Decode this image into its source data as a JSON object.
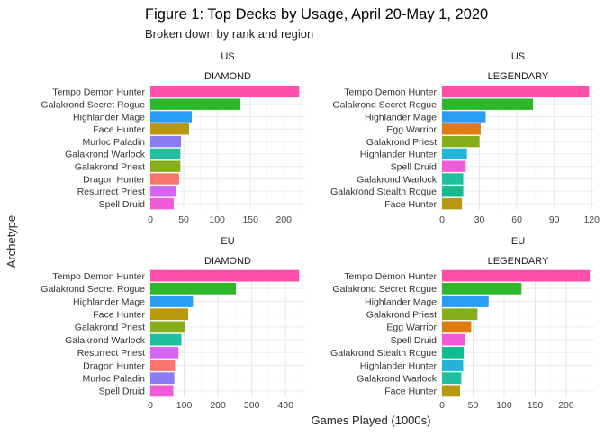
{
  "title": "Figure 1: Top Decks by Usage, April 20-May 1, 2020",
  "subtitle": "Broken down by rank and region",
  "xlabel": "Games Played (1000s)",
  "ylabel": "Archetype",
  "colors": {
    "Tempo Demon Hunter": "#FF4FAB",
    "Galakrond Secret Rogue": "#2EB62C",
    "Highlander Mage": "#2A9DF4",
    "Face Hunter": "#B8980F",
    "Murloc Paladin": "#8C7CF4",
    "Galakrond Warlock": "#1FBF9F",
    "Galakrond Priest": "#86AE1A",
    "Dragon Hunter": "#F8766D",
    "Resurrect Priest": "#D566F2",
    "Spell Druid": "#F25BD7",
    "Egg Warrior": "#DE7B12",
    "Highlander Hunter": "#22B5D8",
    "Galakrond Stealth Rogue": "#12BA8F"
  },
  "chart_data": [
    {
      "type": "bar",
      "orientation": "horizontal",
      "region": "US",
      "rank": "DIAMOND",
      "categories": [
        "Tempo Demon Hunter",
        "Galakrond Secret Rogue",
        "Highlander Mage",
        "Face Hunter",
        "Murloc Paladin",
        "Galakrond Warlock",
        "Galakrond Priest",
        "Dragon Hunter",
        "Resurrect Priest",
        "Spell Druid"
      ],
      "values": [
        223,
        135,
        62,
        58,
        46,
        45,
        45,
        43,
        38,
        35
      ],
      "xlim": [
        0,
        232
      ],
      "xticks": [
        0,
        50,
        100,
        150,
        200
      ],
      "xtick_labels": [
        "0",
        "50",
        "100",
        "150",
        "200"
      ]
    },
    {
      "type": "bar",
      "orientation": "horizontal",
      "region": "US",
      "rank": "LEGENDARY",
      "categories": [
        "Tempo Demon Hunter",
        "Galakrond Secret Rogue",
        "Highlander Mage",
        "Egg Warrior",
        "Galakrond Priest",
        "Highlander Hunter",
        "Spell Druid",
        "Galakrond Warlock",
        "Galakrond Stealth Rogue",
        "Face Hunter"
      ],
      "values": [
        118,
        73,
        35,
        31,
        30,
        20,
        19,
        17,
        17,
        16
      ],
      "xlim": [
        0,
        122
      ],
      "xticks": [
        0,
        30,
        60,
        90,
        120
      ],
      "xtick_labels": [
        "0",
        "30",
        "60",
        "90",
        "120"
      ]
    },
    {
      "type": "bar",
      "orientation": "horizontal",
      "region": "EU",
      "rank": "DIAMOND",
      "categories": [
        "Tempo Demon Hunter",
        "Galakrond Secret Rogue",
        "Highlander Mage",
        "Face Hunter",
        "Galakrond Priest",
        "Galakrond Warlock",
        "Resurrect Priest",
        "Dragon Hunter",
        "Murloc Paladin",
        "Spell Druid"
      ],
      "values": [
        440,
        253,
        126,
        112,
        103,
        92,
        83,
        73,
        71,
        68
      ],
      "xlim": [
        0,
        458
      ],
      "xticks": [
        0,
        100,
        200,
        300,
        400
      ],
      "xtick_labels": [
        "0",
        "100",
        "200",
        "300",
        "400"
      ]
    },
    {
      "type": "bar",
      "orientation": "horizontal",
      "region": "EU",
      "rank": "LEGENDARY",
      "categories": [
        "Tempo Demon Hunter",
        "Galakrond Secret Rogue",
        "Highlander Mage",
        "Galakrond Priest",
        "Egg Warrior",
        "Spell Druid",
        "Galakrond Stealth Rogue",
        "Highlander Hunter",
        "Galakrond Warlock",
        "Face Hunter"
      ],
      "values": [
        238,
        128,
        75,
        57,
        47,
        37,
        35,
        34,
        31,
        29
      ],
      "xlim": [
        0,
        245
      ],
      "xticks": [
        0,
        50,
        100,
        150,
        200
      ],
      "xtick_labels": [
        "0",
        "50",
        "100",
        "150",
        "200"
      ]
    }
  ]
}
